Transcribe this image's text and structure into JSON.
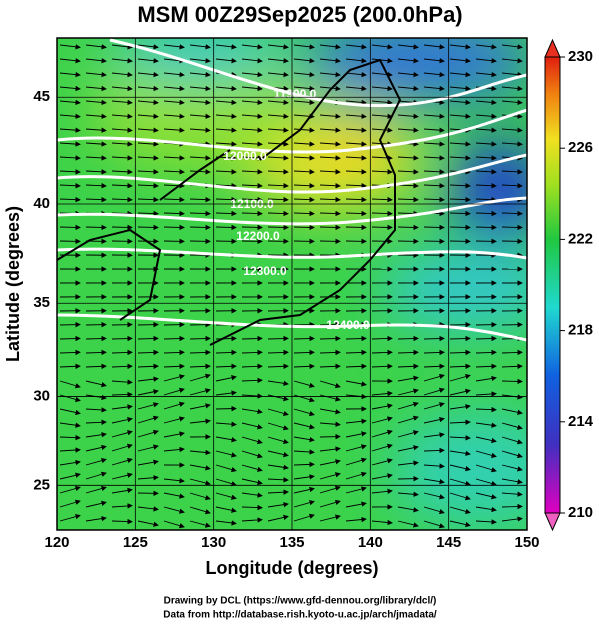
{
  "title": "MSM 00Z29Sep2025 (200.0hPa)",
  "map": {
    "x_axis": {
      "label": "Longitude (degrees)",
      "lim": [
        120,
        150
      ],
      "ticks": [
        120,
        125,
        130,
        135,
        140,
        145,
        150
      ]
    },
    "y_axis": {
      "label": "Latitude  (degrees)",
      "lim": [
        22.4,
        47.6
      ],
      "ticks": [
        25,
        30,
        35,
        40,
        45
      ]
    },
    "contours": [
      "11900.0",
      "12000.0",
      "12100.0",
      "12200.0",
      "12300.0",
      "12400.0"
    ],
    "colorbar": {
      "lim": [
        210,
        230
      ],
      "ticks": [
        210,
        214,
        218,
        222,
        226,
        230
      ]
    }
  },
  "credits": [
    "Drawing by DCL (https://www.gfd-dennou.org/library/dcl/)",
    "Data from http://database.rish.kyoto-u.ac.jp/arch/jmadata/"
  ]
}
